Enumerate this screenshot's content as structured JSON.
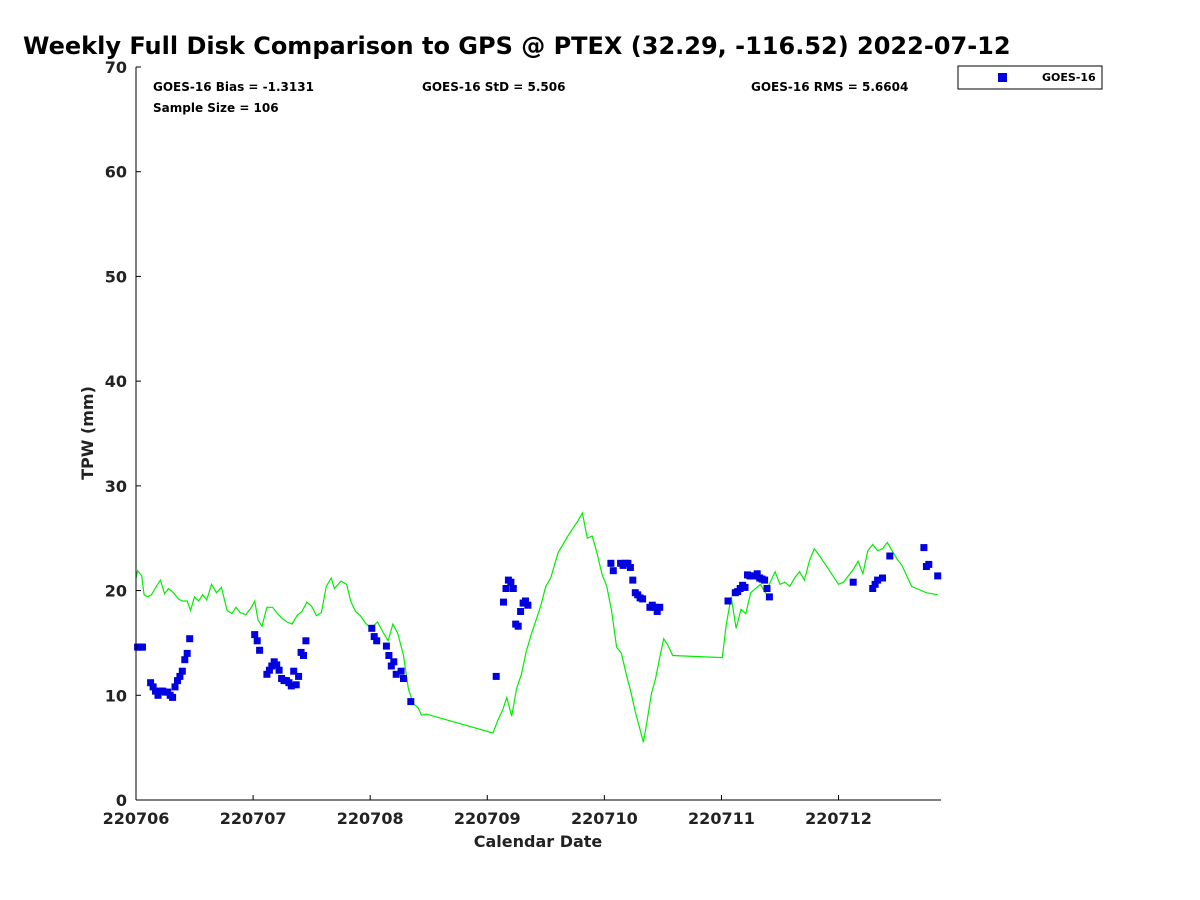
{
  "chart_data": {
    "type": "scatter",
    "title": "Weekly Full Disk Comparison to GPS @ PTEX (32.29, -116.52) 2022-07-12",
    "xlabel": "Calendar Date",
    "ylabel": "TPW (mm)",
    "xlim": [
      "2022-07-06",
      "2022-07-12T21:00"
    ],
    "ylim": [
      0,
      70
    ],
    "x_ticks": [
      "220706",
      "220707",
      "220708",
      "220709",
      "220710",
      "220711",
      "220712"
    ],
    "y_ticks": [
      0,
      10,
      20,
      30,
      40,
      50,
      60,
      70
    ],
    "grid": false,
    "legend": {
      "position": "top-right",
      "entries": [
        "GOES-16"
      ]
    },
    "stats": [
      "GOES-16 Bias = -1.3131",
      "GOES-16 StD = 5.506",
      "GOES-16 RMS = 5.6604",
      "Sample Size = 106"
    ],
    "series": [
      {
        "name": "GOES-16",
        "color": "#0000e0",
        "marker": "square",
        "points": [
          [
            "2022-07-06T00:20",
            14.6
          ],
          [
            "2022-07-06T00:40",
            14.6
          ],
          [
            "2022-07-06T01:00",
            14.6
          ],
          [
            "2022-07-06T01:20",
            14.6
          ],
          [
            "2022-07-06T03:00",
            11.2
          ],
          [
            "2022-07-06T03:30",
            10.8
          ],
          [
            "2022-07-06T04:00",
            10.4
          ],
          [
            "2022-07-06T04:30",
            10.0
          ],
          [
            "2022-07-06T05:00",
            10.4
          ],
          [
            "2022-07-06T05:30",
            10.4
          ],
          [
            "2022-07-06T06:00",
            10.3
          ],
          [
            "2022-07-06T06:30",
            10.3
          ],
          [
            "2022-07-06T07:00",
            10.0
          ],
          [
            "2022-07-06T07:30",
            9.8
          ],
          [
            "2022-07-06T08:00",
            10.8
          ],
          [
            "2022-07-06T08:30",
            11.4
          ],
          [
            "2022-07-06T09:00",
            11.8
          ],
          [
            "2022-07-06T09:30",
            12.3
          ],
          [
            "2022-07-06T10:00",
            13.4
          ],
          [
            "2022-07-06T10:30",
            14.0
          ],
          [
            "2022-07-06T11:00",
            15.4
          ],
          [
            "2022-07-07T00:20",
            15.8
          ],
          [
            "2022-07-07T00:50",
            15.2
          ],
          [
            "2022-07-07T01:20",
            14.3
          ],
          [
            "2022-07-07T02:50",
            12.0
          ],
          [
            "2022-07-07T03:20",
            12.4
          ],
          [
            "2022-07-07T03:50",
            12.8
          ],
          [
            "2022-07-07T04:20",
            13.2
          ],
          [
            "2022-07-07T04:50",
            12.9
          ],
          [
            "2022-07-07T05:20",
            12.4
          ],
          [
            "2022-07-07T05:50",
            11.6
          ],
          [
            "2022-07-07T06:20",
            11.4
          ],
          [
            "2022-07-07T06:50",
            11.4
          ],
          [
            "2022-07-07T07:20",
            11.2
          ],
          [
            "2022-07-07T07:50",
            10.9
          ],
          [
            "2022-07-07T08:20",
            12.3
          ],
          [
            "2022-07-07T08:50",
            11.0
          ],
          [
            "2022-07-07T09:20",
            11.8
          ],
          [
            "2022-07-07T09:50",
            14.1
          ],
          [
            "2022-07-07T10:20",
            13.8
          ],
          [
            "2022-07-07T10:50",
            15.2
          ],
          [
            "2022-07-08T00:20",
            16.4
          ],
          [
            "2022-07-08T00:50",
            15.6
          ],
          [
            "2022-07-08T01:20",
            15.2
          ],
          [
            "2022-07-08T03:20",
            14.7
          ],
          [
            "2022-07-08T03:50",
            13.8
          ],
          [
            "2022-07-08T04:20",
            12.8
          ],
          [
            "2022-07-08T04:50",
            13.2
          ],
          [
            "2022-07-08T05:20",
            12.0
          ],
          [
            "2022-07-08T06:20",
            12.3
          ],
          [
            "2022-07-08T06:50",
            11.6
          ],
          [
            "2022-07-08T08:20",
            9.4
          ],
          [
            "2022-07-09T01:50",
            11.8
          ],
          [
            "2022-07-09T03:20",
            18.9
          ],
          [
            "2022-07-09T03:50",
            20.2
          ],
          [
            "2022-07-09T04:20",
            21.0
          ],
          [
            "2022-07-09T04:50",
            20.8
          ],
          [
            "2022-07-09T05:20",
            20.2
          ],
          [
            "2022-07-09T05:50",
            16.8
          ],
          [
            "2022-07-09T06:20",
            16.6
          ],
          [
            "2022-07-09T06:50",
            18.0
          ],
          [
            "2022-07-09T07:20",
            18.8
          ],
          [
            "2022-07-09T07:50",
            19.0
          ],
          [
            "2022-07-09T08:20",
            18.6
          ],
          [
            "2022-07-10T01:20",
            22.6
          ],
          [
            "2022-07-10T01:50",
            21.9
          ],
          [
            "2022-07-10T03:20",
            22.6
          ],
          [
            "2022-07-10T03:50",
            22.4
          ],
          [
            "2022-07-10T04:20",
            22.6
          ],
          [
            "2022-07-10T04:50",
            22.6
          ],
          [
            "2022-07-10T05:20",
            22.2
          ],
          [
            "2022-07-10T05:50",
            21.0
          ],
          [
            "2022-07-10T06:20",
            19.8
          ],
          [
            "2022-07-10T06:50",
            19.6
          ],
          [
            "2022-07-10T07:20",
            19.3
          ],
          [
            "2022-07-10T07:50",
            19.2
          ],
          [
            "2022-07-10T09:20",
            18.4
          ],
          [
            "2022-07-10T09:50",
            18.6
          ],
          [
            "2022-07-10T10:20",
            18.4
          ],
          [
            "2022-07-10T10:50",
            18.0
          ],
          [
            "2022-07-10T11:20",
            18.4
          ],
          [
            "2022-07-11T01:20",
            19.0
          ],
          [
            "2022-07-11T02:50",
            19.8
          ],
          [
            "2022-07-11T03:20",
            19.9
          ],
          [
            "2022-07-11T03:50",
            20.2
          ],
          [
            "2022-07-11T04:20",
            20.5
          ],
          [
            "2022-07-11T04:50",
            20.3
          ],
          [
            "2022-07-11T05:20",
            21.5
          ],
          [
            "2022-07-11T05:50",
            21.4
          ],
          [
            "2022-07-11T06:20",
            21.4
          ],
          [
            "2022-07-11T06:50",
            21.4
          ],
          [
            "2022-07-11T07:20",
            21.6
          ],
          [
            "2022-07-11T07:50",
            21.2
          ],
          [
            "2022-07-11T08:20",
            21.1
          ],
          [
            "2022-07-11T08:50",
            21.0
          ],
          [
            "2022-07-11T09:20",
            20.2
          ],
          [
            "2022-07-11T09:50",
            19.4
          ],
          [
            "2022-07-12T03:00",
            20.8
          ],
          [
            "2022-07-12T07:00",
            20.2
          ],
          [
            "2022-07-12T07:30",
            20.6
          ],
          [
            "2022-07-12T08:00",
            21.0
          ],
          [
            "2022-07-12T09:00",
            21.2
          ],
          [
            "2022-07-12T10:30",
            23.3
          ],
          [
            "2022-07-12T17:30",
            24.1
          ],
          [
            "2022-07-12T18:00",
            22.3
          ],
          [
            "2022-07-12T18:30",
            22.5
          ],
          [
            "2022-07-12T20:20",
            21.4
          ]
        ]
      },
      {
        "name": "",
        "color": "#00ee00",
        "type": "line",
        "points": [
          [
            "2022-07-06T00:00",
            21.2
          ],
          [
            "2022-07-06T00:20",
            21.9
          ],
          [
            "2022-07-06T01:10",
            21.4
          ],
          [
            "2022-07-06T01:40",
            19.6
          ],
          [
            "2022-07-06T02:20",
            19.4
          ],
          [
            "2022-07-06T03:10",
            19.6
          ],
          [
            "2022-07-06T04:10",
            20.4
          ],
          [
            "2022-07-06T05:00",
            21.0
          ],
          [
            "2022-07-06T05:50",
            19.7
          ],
          [
            "2022-07-06T06:40",
            20.2
          ],
          [
            "2022-07-06T07:40",
            19.8
          ],
          [
            "2022-07-06T08:40",
            19.2
          ],
          [
            "2022-07-06T09:30",
            19.0
          ],
          [
            "2022-07-06T10:30",
            19.0
          ],
          [
            "2022-07-06T11:10",
            18.1
          ],
          [
            "2022-07-06T12:00",
            19.4
          ],
          [
            "2022-07-06T12:50",
            19.0
          ],
          [
            "2022-07-06T13:40",
            19.6
          ],
          [
            "2022-07-06T14:30",
            19.1
          ],
          [
            "2022-07-06T15:30",
            20.6
          ],
          [
            "2022-07-06T16:30",
            19.8
          ],
          [
            "2022-07-06T17:30",
            20.3
          ],
          [
            "2022-07-06T18:40",
            18.1
          ],
          [
            "2022-07-06T19:40",
            17.8
          ],
          [
            "2022-07-06T20:30",
            18.4
          ],
          [
            "2022-07-06T21:20",
            17.9
          ],
          [
            "2022-07-06T22:30",
            17.7
          ],
          [
            "2022-07-06T23:40",
            18.4
          ],
          [
            "2022-07-07T00:20",
            19.0
          ],
          [
            "2022-07-07T01:00",
            17.2
          ],
          [
            "2022-07-07T01:50",
            16.6
          ],
          [
            "2022-07-07T02:50",
            18.4
          ],
          [
            "2022-07-07T04:00",
            18.4
          ],
          [
            "2022-07-07T05:00",
            17.8
          ],
          [
            "2022-07-07T06:00",
            17.3
          ],
          [
            "2022-07-07T07:00",
            17.0
          ],
          [
            "2022-07-07T08:00",
            16.8
          ],
          [
            "2022-07-07T09:00",
            17.6
          ],
          [
            "2022-07-07T10:00",
            18.0
          ],
          [
            "2022-07-07T11:00",
            18.9
          ],
          [
            "2022-07-07T12:00",
            18.5
          ],
          [
            "2022-07-07T13:00",
            17.6
          ],
          [
            "2022-07-07T14:00",
            17.9
          ],
          [
            "2022-07-07T15:00",
            20.4
          ],
          [
            "2022-07-07T16:00",
            21.2
          ],
          [
            "2022-07-07T16:40",
            20.2
          ],
          [
            "2022-07-07T18:00",
            20.9
          ],
          [
            "2022-07-07T19:10",
            20.6
          ],
          [
            "2022-07-07T20:00",
            19.0
          ],
          [
            "2022-07-07T21:00",
            18.0
          ],
          [
            "2022-07-07T22:00",
            17.6
          ],
          [
            "2022-07-07T23:00",
            16.9
          ],
          [
            "2022-07-08T00:10",
            16.4
          ],
          [
            "2022-07-08T01:30",
            17.0
          ],
          [
            "2022-07-08T02:40",
            16.0
          ],
          [
            "2022-07-08T03:40",
            15.2
          ],
          [
            "2022-07-08T04:40",
            16.8
          ],
          [
            "2022-07-08T05:40",
            15.9
          ],
          [
            "2022-07-08T06:50",
            13.8
          ],
          [
            "2022-07-08T07:50",
            10.6
          ],
          [
            "2022-07-08T08:50",
            9.2
          ],
          [
            "2022-07-08T09:50",
            8.8
          ],
          [
            "2022-07-08T10:30",
            8.1
          ],
          [
            "2022-07-08T11:30",
            8.2
          ],
          [
            "2022-07-09T01:10",
            6.4
          ],
          [
            "2022-07-09T02:10",
            7.6
          ],
          [
            "2022-07-09T03:10",
            8.6
          ],
          [
            "2022-07-09T04:00",
            9.8
          ],
          [
            "2022-07-09T05:00",
            8.0
          ],
          [
            "2022-07-09T06:00",
            10.6
          ],
          [
            "2022-07-09T07:00",
            12.0
          ],
          [
            "2022-07-09T08:00",
            14.2
          ],
          [
            "2022-07-09T09:00",
            15.8
          ],
          [
            "2022-07-09T10:00",
            17.2
          ],
          [
            "2022-07-09T11:00",
            18.6
          ],
          [
            "2022-07-09T12:00",
            20.4
          ],
          [
            "2022-07-09T13:00",
            21.2
          ],
          [
            "2022-07-09T14:30",
            23.6
          ],
          [
            "2022-07-09T16:30",
            25.2
          ],
          [
            "2022-07-09T18:30",
            26.6
          ],
          [
            "2022-07-09T19:30",
            27.4
          ],
          [
            "2022-07-09T20:30",
            25.0
          ],
          [
            "2022-07-09T21:30",
            25.2
          ],
          [
            "2022-07-09T22:30",
            23.6
          ],
          [
            "2022-07-09T23:30",
            21.6
          ],
          [
            "2022-07-10T00:30",
            20.4
          ],
          [
            "2022-07-10T01:30",
            18.0
          ],
          [
            "2022-07-10T02:30",
            14.6
          ],
          [
            "2022-07-10T03:30",
            14.0
          ],
          [
            "2022-07-10T04:30",
            12.0
          ],
          [
            "2022-07-10T05:30",
            10.2
          ],
          [
            "2022-07-10T06:20",
            8.4
          ],
          [
            "2022-07-10T07:10",
            7.0
          ],
          [
            "2022-07-10T08:00",
            5.5
          ],
          [
            "2022-07-10T08:50",
            7.8
          ],
          [
            "2022-07-10T09:40",
            10.2
          ],
          [
            "2022-07-10T10:30",
            11.6
          ],
          [
            "2022-07-10T11:20",
            13.6
          ],
          [
            "2022-07-10T12:10",
            15.4
          ],
          [
            "2022-07-10T13:00",
            14.8
          ],
          [
            "2022-07-10T14:00",
            13.8
          ],
          [
            "2022-07-11T00:10",
            13.6
          ],
          [
            "2022-07-11T01:00",
            16.8
          ],
          [
            "2022-07-11T02:00",
            19.4
          ],
          [
            "2022-07-11T03:00",
            16.4
          ],
          [
            "2022-07-11T04:00",
            18.2
          ],
          [
            "2022-07-11T05:00",
            17.8
          ],
          [
            "2022-07-11T06:00",
            19.8
          ],
          [
            "2022-07-11T07:00",
            20.2
          ],
          [
            "2022-07-11T08:00",
            20.6
          ],
          [
            "2022-07-11T09:00",
            19.8
          ],
          [
            "2022-07-11T10:00",
            20.8
          ],
          [
            "2022-07-11T11:00",
            21.8
          ],
          [
            "2022-07-11T12:00",
            20.6
          ],
          [
            "2022-07-11T13:00",
            20.8
          ],
          [
            "2022-07-11T14:00",
            20.4
          ],
          [
            "2022-07-11T15:00",
            21.2
          ],
          [
            "2022-07-11T16:00",
            21.8
          ],
          [
            "2022-07-11T17:00",
            21.0
          ],
          [
            "2022-07-11T18:00",
            22.8
          ],
          [
            "2022-07-11T19:00",
            24.0
          ],
          [
            "2022-07-11T20:00",
            23.4
          ],
          [
            "2022-07-11T22:00",
            22.0
          ],
          [
            "2022-07-12T00:00",
            20.6
          ],
          [
            "2022-07-12T01:00",
            20.8
          ],
          [
            "2022-07-12T02:00",
            21.4
          ],
          [
            "2022-07-12T03:00",
            22.0
          ],
          [
            "2022-07-12T04:00",
            22.8
          ],
          [
            "2022-07-12T05:00",
            21.6
          ],
          [
            "2022-07-12T06:00",
            23.8
          ],
          [
            "2022-07-12T07:00",
            24.4
          ],
          [
            "2022-07-12T08:00",
            23.8
          ],
          [
            "2022-07-12T09:00",
            24.0
          ],
          [
            "2022-07-12T10:00",
            24.6
          ],
          [
            "2022-07-12T11:00",
            23.8
          ],
          [
            "2022-07-12T12:00",
            23.0
          ],
          [
            "2022-07-12T13:00",
            22.4
          ],
          [
            "2022-07-12T14:00",
            21.4
          ],
          [
            "2022-07-12T15:00",
            20.4
          ],
          [
            "2022-07-12T16:00",
            20.2
          ],
          [
            "2022-07-12T18:00",
            19.8
          ],
          [
            "2022-07-12T20:20",
            19.6
          ]
        ]
      }
    ]
  }
}
